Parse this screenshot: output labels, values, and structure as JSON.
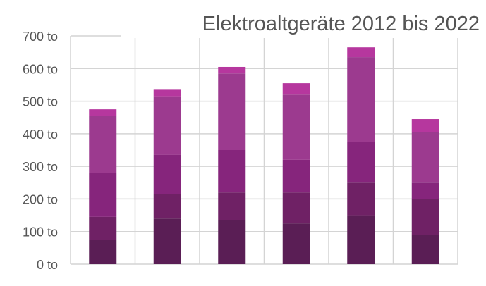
{
  "chart_data": {
    "type": "bar",
    "stacked": true,
    "title": "Elektroaltgeräte 2012 bis 2022",
    "xlabel": "",
    "ylabel": "",
    "ylim": [
      0,
      700
    ],
    "y_ticks": [
      "0 to",
      "100 to",
      "200 to",
      "300 to",
      "400 to",
      "500 to",
      "600 to",
      "700 to"
    ],
    "y_tick_values": [
      0,
      100,
      200,
      300,
      400,
      500,
      600,
      700
    ],
    "grid": true,
    "legend": "none",
    "categories": [
      "",
      "",
      "",
      "",
      "",
      ""
    ],
    "series": [
      {
        "color": "#5a1e55",
        "values": [
          75,
          140,
          135,
          125,
          150,
          90
        ]
      },
      {
        "color": "#6f2165",
        "values": [
          70,
          75,
          85,
          95,
          100,
          110
        ]
      },
      {
        "color": "#86257c",
        "values": [
          135,
          120,
          130,
          100,
          125,
          50
        ]
      },
      {
        "color": "#9c3a8f",
        "values": [
          175,
          180,
          235,
          200,
          260,
          155
        ]
      },
      {
        "color": "#b6379e",
        "values": [
          20,
          20,
          20,
          35,
          30,
          40
        ]
      }
    ]
  }
}
